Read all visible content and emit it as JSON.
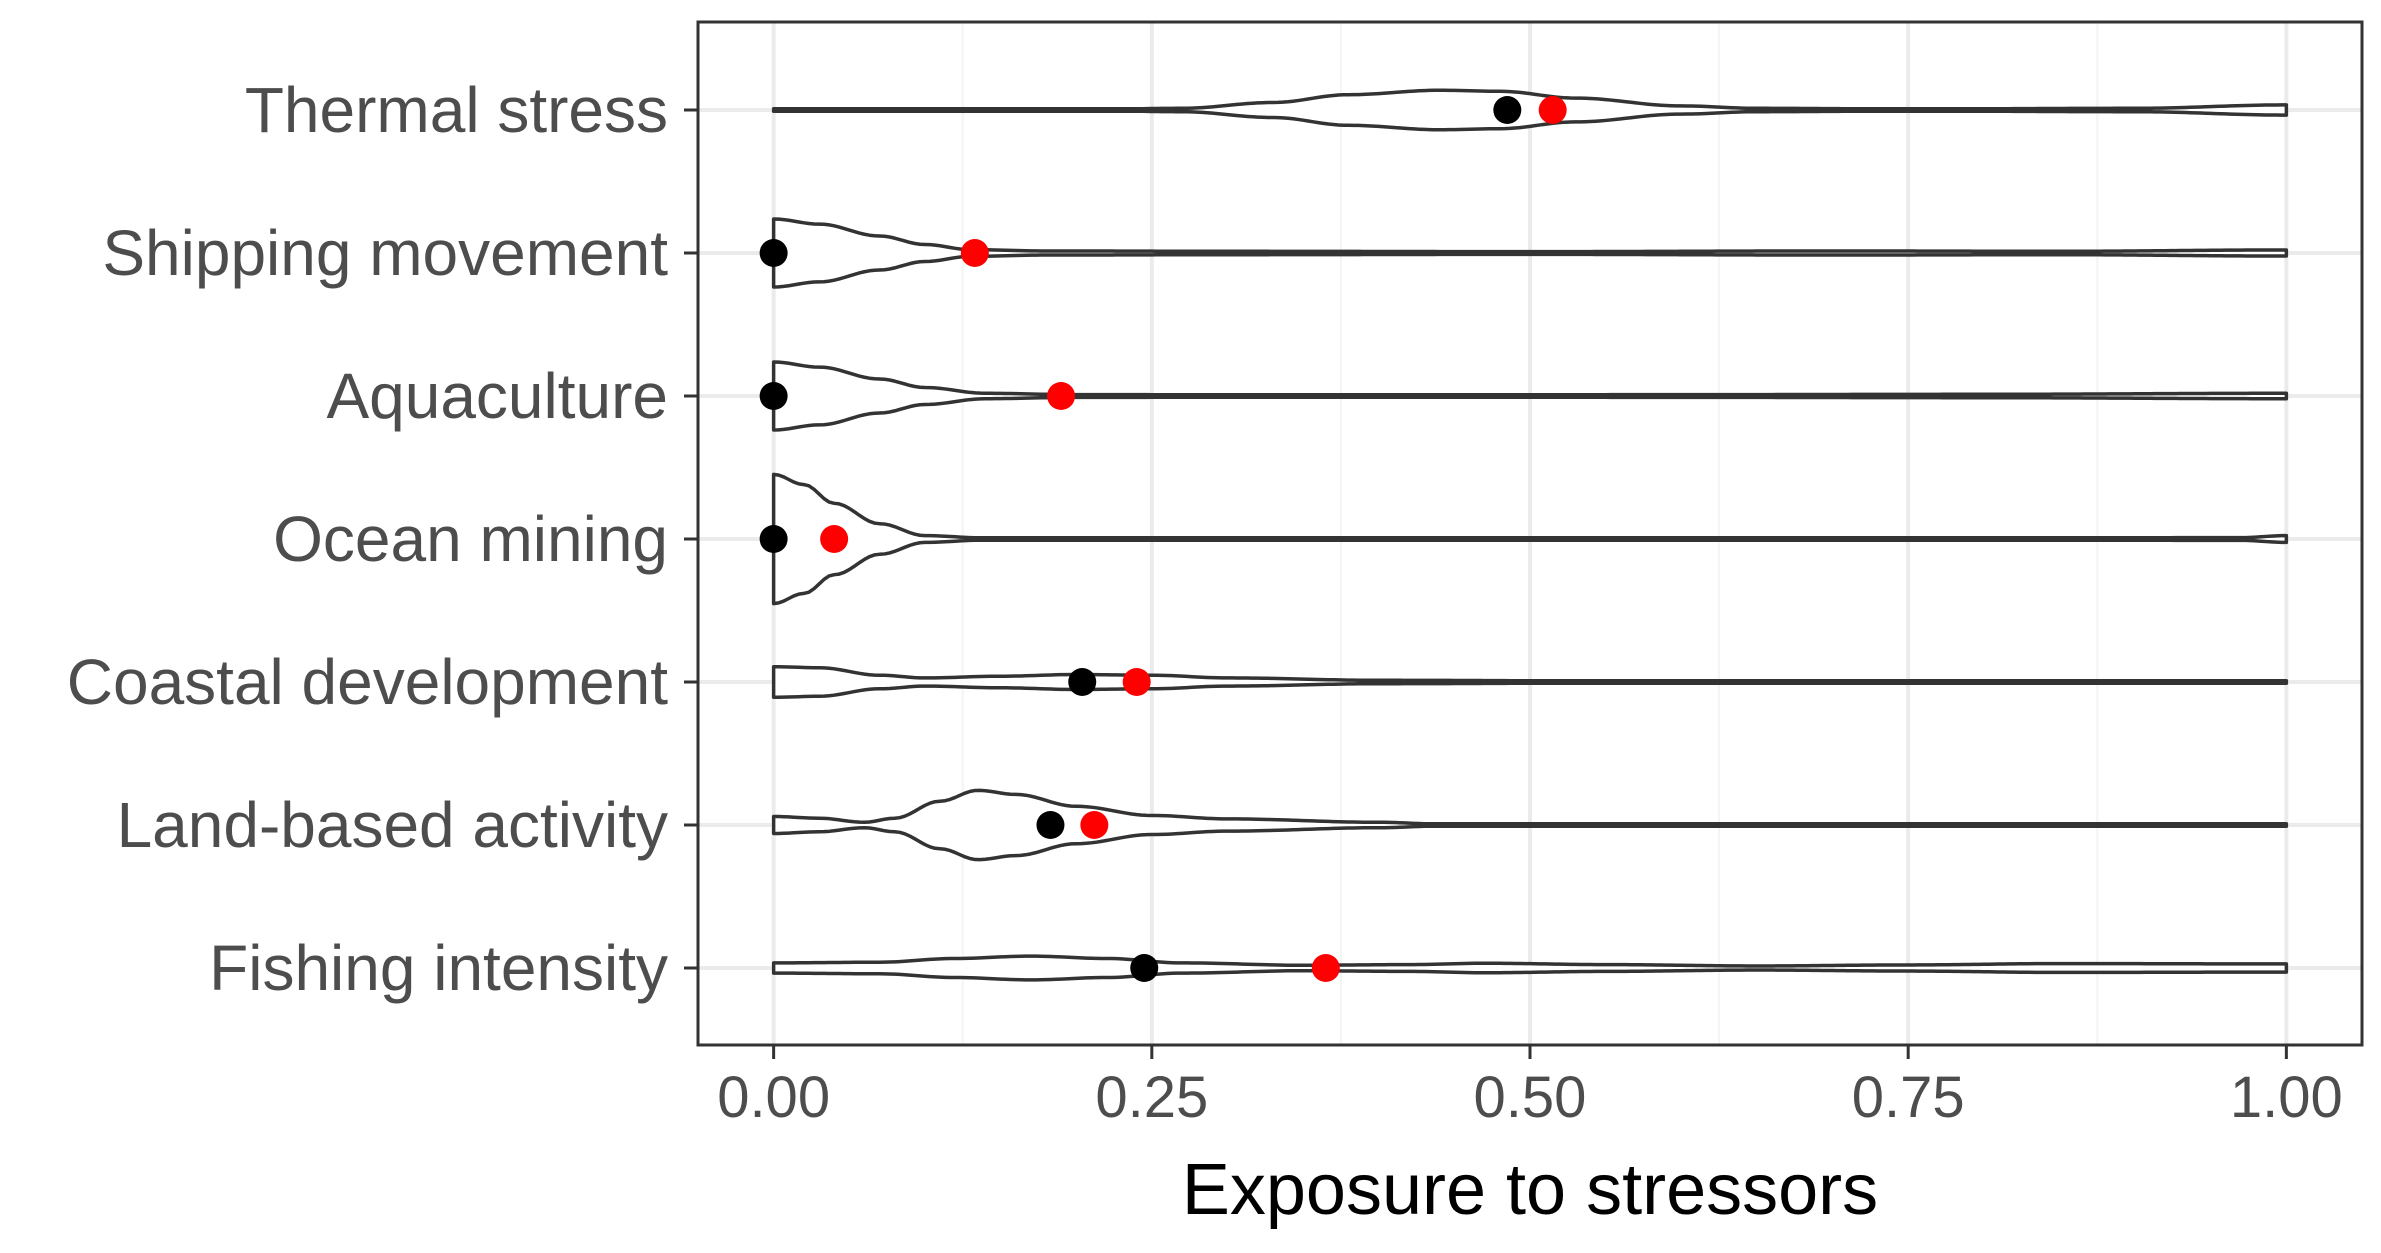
{
  "chart_data": {
    "type": "violin",
    "xlabel": "Exposure to stressors",
    "ylabel": "",
    "xlim": [
      -0.05,
      1.05
    ],
    "x_ticks": [
      0,
      0.25,
      0.5,
      0.75,
      1
    ],
    "x_tick_labels": [
      "0.00",
      "0.25",
      "0.50",
      "0.75",
      "1.00"
    ],
    "grid": true,
    "colors": {
      "median_point": "#000000",
      "mean_point": "#ff0000",
      "outline": "#333333",
      "grid": "#ebebeb"
    },
    "categories": [
      "Thermal stress",
      "Shipping movement",
      "Aquaculture",
      "Ocean mining",
      "Coastal development",
      "Land-based activity",
      "Fishing intensity"
    ],
    "series": [
      {
        "name": "Thermal stress",
        "median": 0.485,
        "mean": 0.515,
        "density": [
          [
            0.0,
            0.01
          ],
          [
            0.2,
            0.01
          ],
          [
            0.27,
            0.05
          ],
          [
            0.33,
            0.22
          ],
          [
            0.38,
            0.45
          ],
          [
            0.44,
            0.58
          ],
          [
            0.48,
            0.55
          ],
          [
            0.53,
            0.35
          ],
          [
            0.6,
            0.12
          ],
          [
            0.65,
            0.05
          ],
          [
            0.75,
            0.03
          ],
          [
            0.9,
            0.05
          ],
          [
            1.0,
            0.15
          ]
        ]
      },
      {
        "name": "Shipping movement",
        "median": 0.0,
        "mean": 0.133,
        "density": [
          [
            0.0,
            1.0
          ],
          [
            0.03,
            0.85
          ],
          [
            0.07,
            0.5
          ],
          [
            0.1,
            0.25
          ],
          [
            0.13,
            0.1
          ],
          [
            0.18,
            0.06
          ],
          [
            0.3,
            0.05
          ],
          [
            0.5,
            0.04
          ],
          [
            0.7,
            0.06
          ],
          [
            0.85,
            0.05
          ],
          [
            1.0,
            0.09
          ]
        ]
      },
      {
        "name": "Aquaculture",
        "median": 0.0,
        "mean": 0.19,
        "density": [
          [
            0.0,
            1.0
          ],
          [
            0.03,
            0.85
          ],
          [
            0.07,
            0.5
          ],
          [
            0.1,
            0.25
          ],
          [
            0.14,
            0.08
          ],
          [
            0.2,
            0.04
          ],
          [
            0.4,
            0.03
          ],
          [
            0.6,
            0.04
          ],
          [
            0.8,
            0.05
          ],
          [
            1.0,
            0.08
          ]
        ]
      },
      {
        "name": "Ocean mining",
        "median": 0.0,
        "mean": 0.04,
        "density": [
          [
            0.0,
            1.9
          ],
          [
            0.02,
            1.6
          ],
          [
            0.04,
            1.05
          ],
          [
            0.07,
            0.45
          ],
          [
            0.1,
            0.1
          ],
          [
            0.14,
            0.03
          ],
          [
            0.4,
            0.02
          ],
          [
            0.7,
            0.02
          ],
          [
            0.97,
            0.04
          ],
          [
            1.0,
            0.1
          ]
        ]
      },
      {
        "name": "Coastal development",
        "median": 0.204,
        "mean": 0.24,
        "density": [
          [
            0.0,
            0.45
          ],
          [
            0.03,
            0.42
          ],
          [
            0.07,
            0.2
          ],
          [
            0.1,
            0.12
          ],
          [
            0.15,
            0.17
          ],
          [
            0.2,
            0.22
          ],
          [
            0.25,
            0.2
          ],
          [
            0.3,
            0.12
          ],
          [
            0.4,
            0.05
          ],
          [
            0.6,
            0.02
          ],
          [
            0.8,
            0.01
          ],
          [
            1.0,
            0.01
          ]
        ]
      },
      {
        "name": "Land-based activity",
        "median": 0.183,
        "mean": 0.212,
        "density": [
          [
            0.0,
            0.25
          ],
          [
            0.03,
            0.2
          ],
          [
            0.06,
            0.08
          ],
          [
            0.08,
            0.2
          ],
          [
            0.11,
            0.7
          ],
          [
            0.135,
            1.02
          ],
          [
            0.16,
            0.9
          ],
          [
            0.2,
            0.55
          ],
          [
            0.25,
            0.28
          ],
          [
            0.3,
            0.18
          ],
          [
            0.4,
            0.08
          ],
          [
            0.44,
            0.03
          ],
          [
            0.6,
            0.01
          ],
          [
            1.0,
            0.01
          ]
        ]
      },
      {
        "name": "Fishing intensity",
        "median": 0.245,
        "mean": 0.365,
        "density": [
          [
            0.0,
            0.15
          ],
          [
            0.07,
            0.17
          ],
          [
            0.12,
            0.28
          ],
          [
            0.17,
            0.35
          ],
          [
            0.22,
            0.28
          ],
          [
            0.27,
            0.15
          ],
          [
            0.35,
            0.08
          ],
          [
            0.42,
            0.1
          ],
          [
            0.47,
            0.14
          ],
          [
            0.55,
            0.1
          ],
          [
            0.65,
            0.06
          ],
          [
            0.75,
            0.09
          ],
          [
            0.85,
            0.13
          ],
          [
            1.0,
            0.12
          ]
        ]
      }
    ]
  }
}
